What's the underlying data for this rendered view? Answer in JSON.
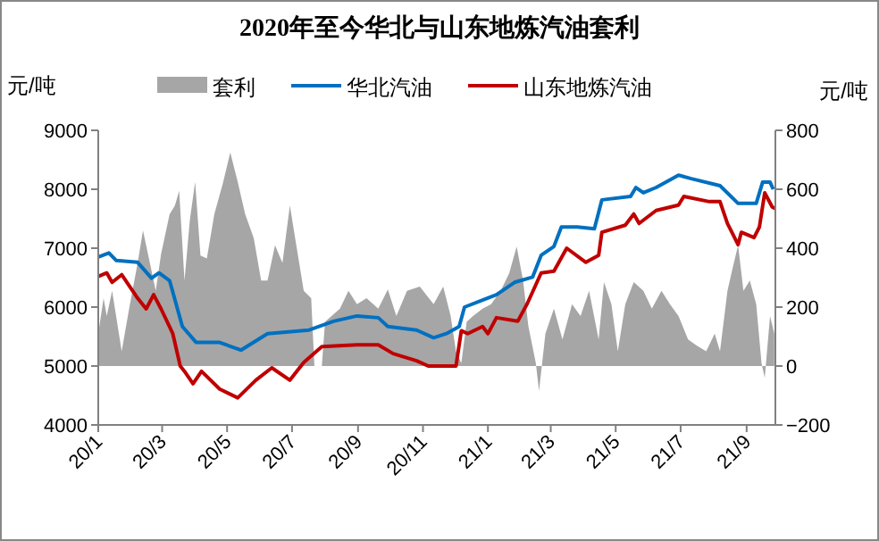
{
  "chart_data": {
    "type": "line",
    "title": "2020年至今华北与山东地炼汽油套利",
    "ylabel": "元/吨",
    "y2label": "元/吨",
    "legend": "top",
    "xlim": [
      "2020-01-01",
      "2021-09-28"
    ],
    "xticks": [
      {
        "value": "2020-01-01",
        "label": "20/1"
      },
      {
        "value": "2020-03-01",
        "label": "20/3"
      },
      {
        "value": "2020-05-01",
        "label": "20/5"
      },
      {
        "value": "2020-07-01",
        "label": "20/7"
      },
      {
        "value": "2020-09-01",
        "label": "20/9"
      },
      {
        "value": "2020-11-01",
        "label": "20/11"
      },
      {
        "value": "2021-01-01",
        "label": "21/1"
      },
      {
        "value": "2021-03-01",
        "label": "21/3"
      },
      {
        "value": "2021-05-01",
        "label": "21/5"
      },
      {
        "value": "2021-07-01",
        "label": "21/7"
      },
      {
        "value": "2021-09-01",
        "label": "21/9"
      }
    ],
    "ylim": [
      4000,
      9000
    ],
    "yticks": [
      4000,
      5000,
      6000,
      7000,
      8000,
      9000
    ],
    "y2lim": [
      -200,
      800
    ],
    "y2ticks": [
      -200,
      0,
      200,
      400,
      600,
      800
    ],
    "series": [
      {
        "name": "套利",
        "type": "area",
        "axis": "y2",
        "color": "#a6a6a6",
        "x": [
          "2020-01-01",
          "2020-01-06",
          "2020-01-09",
          "2020-01-14",
          "2020-01-23",
          "2020-01-30",
          "2020-02-07",
          "2020-02-12",
          "2020-02-17",
          "2020-02-24",
          "2020-02-29",
          "2020-03-08",
          "2020-03-13",
          "2020-03-17",
          "2020-03-22",
          "2020-03-27",
          "2020-04-01",
          "2020-04-06",
          "2020-04-12",
          "2020-04-19",
          "2020-04-27",
          "2020-05-04",
          "2020-05-11",
          "2020-05-18",
          "2020-05-26",
          "2020-06-02",
          "2020-06-08",
          "2020-06-15",
          "2020-06-22",
          "2020-06-29",
          "2020-07-05",
          "2020-07-12",
          "2020-07-19",
          "2020-07-22",
          "2020-07-29",
          "2020-08-01",
          "2020-08-15",
          "2020-08-23",
          "2020-08-31",
          "2020-09-09",
          "2020-09-20",
          "2020-09-29",
          "2020-10-07",
          "2020-10-17",
          "2020-10-29",
          "2020-11-11",
          "2020-11-20",
          "2020-11-27",
          "2020-12-02",
          "2020-12-07",
          "2020-12-12",
          "2020-12-18",
          "2020-12-27",
          "2021-01-04",
          "2021-01-13",
          "2021-01-21",
          "2021-01-28",
          "2021-02-03",
          "2021-02-08",
          "2021-02-15",
          "2021-02-18",
          "2021-02-24",
          "2021-03-04",
          "2021-03-12",
          "2021-03-21",
          "2021-03-29",
          "2021-04-06",
          "2021-04-15",
          "2021-04-20",
          "2021-04-27",
          "2021-05-03",
          "2021-05-10",
          "2021-05-18",
          "2021-05-27",
          "2021-06-04",
          "2021-06-13",
          "2021-06-21",
          "2021-06-29",
          "2021-07-08",
          "2021-07-16",
          "2021-07-25",
          "2021-08-02",
          "2021-08-07",
          "2021-08-14",
          "2021-08-19",
          "2021-08-24",
          "2021-08-29",
          "2021-09-04",
          "2021-09-10",
          "2021-09-15",
          "2021-09-18",
          "2021-09-23",
          "2021-09-27"
        ],
        "values": [
          110,
          230,
          170,
          255,
          50,
          195,
          350,
          460,
          375,
          255,
          380,
          515,
          545,
          595,
          290,
          495,
          625,
          375,
          365,
          515,
          620,
          725,
          625,
          515,
          435,
          290,
          290,
          410,
          350,
          545,
          410,
          255,
          230,
          0,
          0,
          150,
          195,
          255,
          210,
          230,
          195,
          260,
          170,
          255,
          270,
          210,
          270,
          170,
          50,
          10,
          150,
          170,
          195,
          210,
          255,
          315,
          405,
          290,
          135,
          10,
          -85,
          110,
          195,
          90,
          210,
          170,
          255,
          90,
          285,
          210,
          50,
          210,
          285,
          255,
          195,
          255,
          210,
          170,
          90,
          70,
          50,
          110,
          50,
          255,
          335,
          410,
          255,
          290,
          210,
          10,
          -40,
          170,
          110
        ]
      },
      {
        "name": "华北汽油",
        "color": "#0070c0",
        "x": [
          "2020-01-01",
          "2020-01-11",
          "2020-01-18",
          "2020-02-07",
          "2020-02-20",
          "2020-02-27",
          "2020-03-08",
          "2020-03-20",
          "2020-04-02",
          "2020-04-24",
          "2020-05-14",
          "2020-06-08",
          "2020-07-17",
          "2020-08-09",
          "2020-08-31",
          "2020-09-20",
          "2020-09-29",
          "2020-10-26",
          "2020-11-11",
          "2020-11-23",
          "2020-12-05",
          "2020-12-10",
          "2020-12-27",
          "2021-01-09",
          "2021-01-26",
          "2021-02-12",
          "2021-02-20",
          "2021-03-04",
          "2021-03-11",
          "2021-03-26",
          "2021-04-11",
          "2021-04-18",
          "2021-05-15",
          "2021-05-20",
          "2021-05-27",
          "2021-06-08",
          "2021-06-29",
          "2021-07-11",
          "2021-08-07",
          "2021-08-24",
          "2021-09-10",
          "2021-09-16",
          "2021-09-23",
          "2021-09-26"
        ],
        "values": [
          6850,
          6920,
          6790,
          6760,
          6490,
          6580,
          6450,
          5670,
          5400,
          5400,
          5270,
          5550,
          5610,
          5760,
          5850,
          5820,
          5670,
          5610,
          5480,
          5550,
          5670,
          6000,
          6120,
          6210,
          6420,
          6510,
          6880,
          7030,
          7360,
          7360,
          7330,
          7820,
          7880,
          8030,
          7940,
          8030,
          8240,
          8180,
          8060,
          7760,
          7760,
          8120,
          8120,
          8000
        ]
      },
      {
        "name": "山东地炼汽油",
        "color": "#c00000",
        "x": [
          "2020-01-01",
          "2020-01-09",
          "2020-01-14",
          "2020-01-23",
          "2020-02-07",
          "2020-02-15",
          "2020-02-22",
          "2020-02-29",
          "2020-03-11",
          "2020-03-18",
          "2020-03-22",
          "2020-03-30",
          "2020-04-07",
          "2020-04-24",
          "2020-05-11",
          "2020-05-28",
          "2020-06-12",
          "2020-06-29",
          "2020-07-12",
          "2020-07-29",
          "2020-08-31",
          "2020-09-20",
          "2020-10-04",
          "2020-10-26",
          "2020-11-06",
          "2020-12-02",
          "2020-12-07",
          "2020-12-13",
          "2020-12-27",
          "2021-01-01",
          "2021-01-09",
          "2021-01-29",
          "2021-02-07",
          "2021-02-20",
          "2021-03-04",
          "2021-03-16",
          "2021-04-03",
          "2021-04-15",
          "2021-04-18",
          "2021-05-10",
          "2021-05-18",
          "2021-05-23",
          "2021-06-08",
          "2021-06-29",
          "2021-07-04",
          "2021-07-28",
          "2021-08-07",
          "2021-08-14",
          "2021-08-24",
          "2021-08-27",
          "2021-09-08",
          "2021-09-13",
          "2021-09-18",
          "2021-09-25",
          "2021-09-28"
        ],
        "values": [
          6520,
          6580,
          6420,
          6550,
          6150,
          5970,
          6210,
          5970,
          5550,
          5000,
          4910,
          4700,
          4910,
          4610,
          4460,
          4760,
          4970,
          4760,
          5060,
          5330,
          5360,
          5360,
          5210,
          5090,
          5000,
          5000,
          5600,
          5550,
          5670,
          5550,
          5820,
          5760,
          6060,
          6580,
          6610,
          7000,
          6760,
          6880,
          7270,
          7390,
          7580,
          7420,
          7640,
          7730,
          7880,
          7790,
          7790,
          7420,
          7060,
          7270,
          7180,
          7360,
          7940,
          7700,
          7670
        ]
      }
    ]
  }
}
